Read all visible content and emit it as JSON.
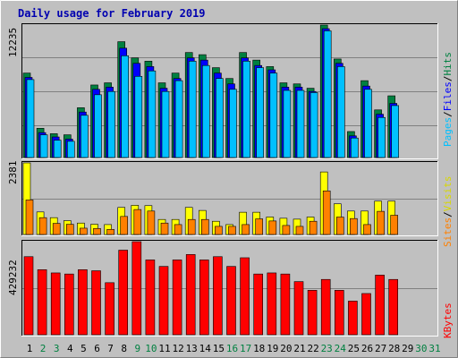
{
  "colors": {
    "background": "#c0c0c0",
    "hits": "#008040",
    "files": "#0000ff",
    "pages": "#00c0ff",
    "visits": "#ffff00",
    "sites": "#ff8000",
    "kbytes": "#ff0000",
    "weekend_day_label": "#008040",
    "title": "#0000b0"
  },
  "chart_data": [
    {
      "type": "bar",
      "title": "Daily usage for February 2019",
      "categories": [
        "1",
        "2",
        "3",
        "4",
        "5",
        "6",
        "7",
        "8",
        "9",
        "10",
        "11",
        "12",
        "13",
        "14",
        "15",
        "16",
        "17",
        "18",
        "19",
        "20",
        "21",
        "22",
        "23",
        "24",
        "25",
        "26",
        "27",
        "28",
        "29",
        "30",
        "31"
      ],
      "weekend_days": [
        "2",
        "3",
        "9",
        "10",
        "16",
        "17",
        "23",
        "24",
        "30",
        "31"
      ],
      "ylabel_max": "12235",
      "right_label_parts": [
        "Pages",
        "/",
        "Files",
        "/",
        "Hits"
      ],
      "ylim": [
        0,
        12235
      ],
      "series": [
        {
          "name": "Hits",
          "values": [
            7800,
            2700,
            2200,
            2100,
            4600,
            6700,
            6900,
            10700,
            9200,
            8900,
            6900,
            7800,
            9700,
            9500,
            8300,
            7300,
            9700,
            9000,
            8400,
            6900,
            6800,
            6400,
            12235,
            9100,
            2400,
            7100,
            4400,
            5700,
            0,
            0,
            0
          ]
        },
        {
          "name": "Files",
          "values": [
            7400,
            2300,
            1900,
            1700,
            4200,
            6300,
            6500,
            10100,
            8700,
            8400,
            6400,
            7300,
            9200,
            9000,
            7800,
            6800,
            9200,
            8500,
            8100,
            6500,
            6500,
            6100,
            11900,
            8700,
            2000,
            6600,
            4000,
            5000,
            0,
            0,
            0
          ]
        },
        {
          "name": "Pages",
          "values": [
            7200,
            2100,
            1600,
            1500,
            3900,
            5800,
            6100,
            9400,
            7500,
            8000,
            6100,
            7100,
            8900,
            8500,
            7300,
            6300,
            8900,
            8300,
            7800,
            6200,
            6200,
            6000,
            11700,
            8400,
            1800,
            6300,
            3700,
            4800,
            0,
            0,
            0
          ]
        }
      ]
    },
    {
      "type": "bar",
      "categories": [
        "1",
        "2",
        "3",
        "4",
        "5",
        "6",
        "7",
        "8",
        "9",
        "10",
        "11",
        "12",
        "13",
        "14",
        "15",
        "16",
        "17",
        "18",
        "19",
        "20",
        "21",
        "22",
        "23",
        "24",
        "25",
        "26",
        "27",
        "28",
        "29",
        "30",
        "31"
      ],
      "ylabel_max": "2381",
      "right_label_parts": [
        "Sites",
        "/",
        "Visits"
      ],
      "ylim": [
        0,
        2381
      ],
      "series": [
        {
          "name": "Visits",
          "values": [
            2381,
            750,
            560,
            460,
            380,
            340,
            330,
            900,
            970,
            960,
            500,
            500,
            900,
            800,
            440,
            330,
            740,
            740,
            580,
            540,
            510,
            580,
            2080,
            1020,
            780,
            780,
            1110,
            1110,
            0,
            0,
            0
          ]
        },
        {
          "name": "Sites",
          "values": [
            1150,
            560,
            370,
            340,
            210,
            200,
            170,
            600,
            830,
            780,
            380,
            330,
            500,
            500,
            270,
            270,
            330,
            520,
            450,
            300,
            270,
            440,
            1450,
            580,
            530,
            330,
            770,
            640,
            0,
            0,
            0
          ]
        }
      ]
    },
    {
      "type": "bar",
      "categories": [
        "1",
        "2",
        "3",
        "4",
        "5",
        "6",
        "7",
        "8",
        "9",
        "10",
        "11",
        "12",
        "13",
        "14",
        "15",
        "16",
        "17",
        "18",
        "19",
        "20",
        "21",
        "22",
        "23",
        "24",
        "25",
        "26",
        "27",
        "28",
        "29",
        "30",
        "31"
      ],
      "ylabel_max": "429232",
      "right_label_parts": [
        "KBytes"
      ],
      "ylim": [
        0,
        429232
      ],
      "series": [
        {
          "name": "KBytes",
          "values": [
            360000,
            300000,
            285000,
            280000,
            300000,
            295000,
            240000,
            390000,
            429232,
            345000,
            315000,
            345000,
            370000,
            345000,
            360000,
            315000,
            355000,
            280000,
            285000,
            280000,
            245000,
            205000,
            255000,
            205000,
            155000,
            190000,
            275000,
            255000,
            0,
            0,
            0
          ]
        }
      ]
    }
  ]
}
